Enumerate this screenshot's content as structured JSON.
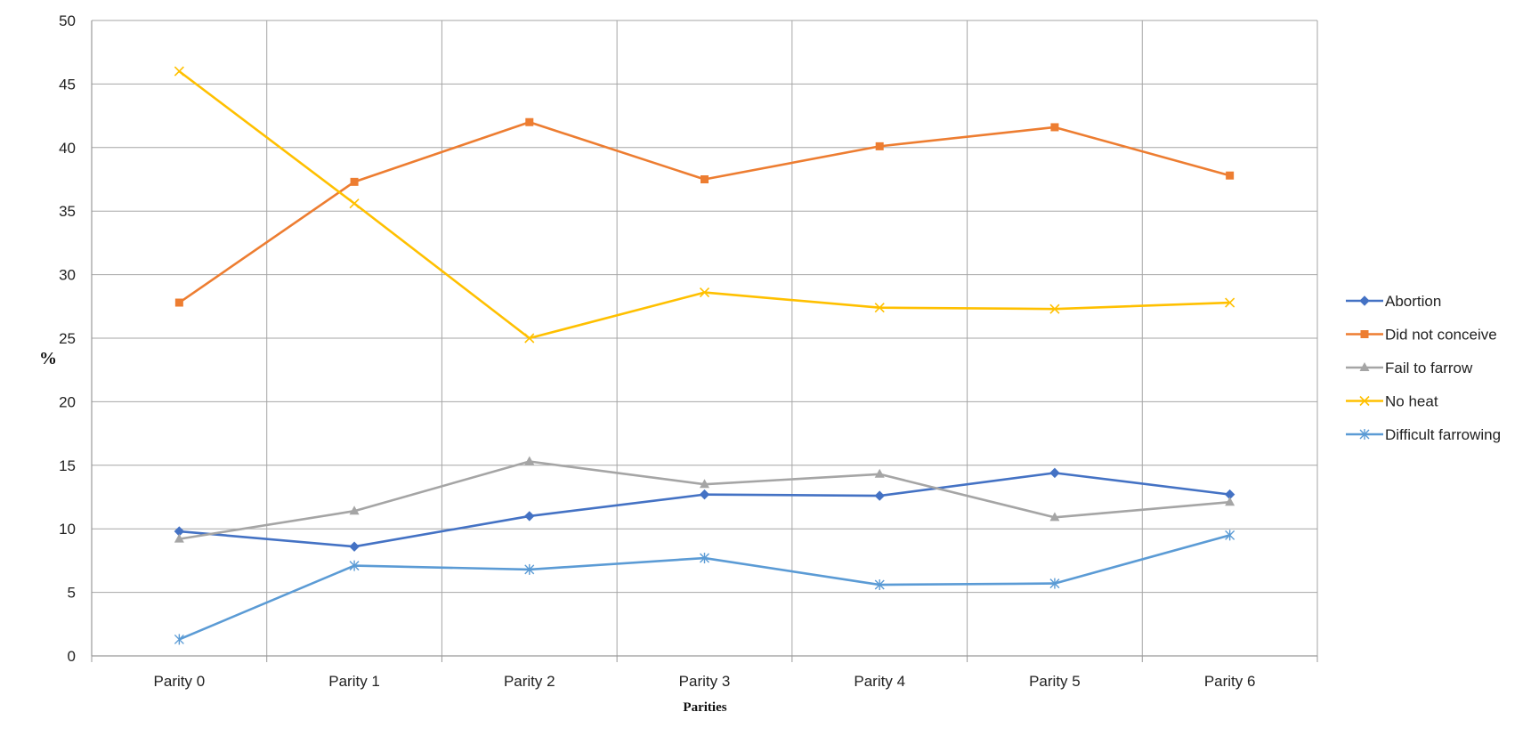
{
  "chart_data": {
    "type": "line",
    "title": "",
    "xlabel": "Parities",
    "ylabel": "%",
    "categories": [
      "Parity 0",
      "Parity 1",
      "Parity 2",
      "Parity 3",
      "Parity 4",
      "Parity 5",
      "Parity 6"
    ],
    "ylim": [
      0,
      50
    ],
    "yticks": [
      0,
      5,
      10,
      15,
      20,
      25,
      30,
      35,
      40,
      45,
      50
    ],
    "grid": "on",
    "legend_position": "right",
    "series": [
      {
        "name": "Abortion",
        "color": "#4472C4",
        "marker": "diamond",
        "values": [
          9.8,
          8.6,
          11.0,
          12.7,
          12.6,
          14.4,
          12.7
        ]
      },
      {
        "name": "Did not conceive",
        "color": "#ED7D31",
        "marker": "square",
        "values": [
          27.8,
          37.3,
          42.0,
          37.5,
          40.1,
          41.6,
          37.8
        ]
      },
      {
        "name": "Fail to farrow",
        "color": "#A5A5A5",
        "marker": "triangle",
        "values": [
          9.2,
          11.4,
          15.3,
          13.5,
          14.3,
          10.9,
          12.1
        ]
      },
      {
        "name": "No heat",
        "color": "#FFC000",
        "marker": "x",
        "values": [
          46.0,
          35.6,
          25.0,
          28.6,
          27.4,
          27.3,
          27.8
        ]
      },
      {
        "name": "Difficult farrowing",
        "color": "#5B9BD5",
        "marker": "asterisk",
        "values": [
          1.3,
          7.1,
          6.8,
          7.7,
          5.6,
          5.7,
          9.5
        ]
      }
    ]
  }
}
